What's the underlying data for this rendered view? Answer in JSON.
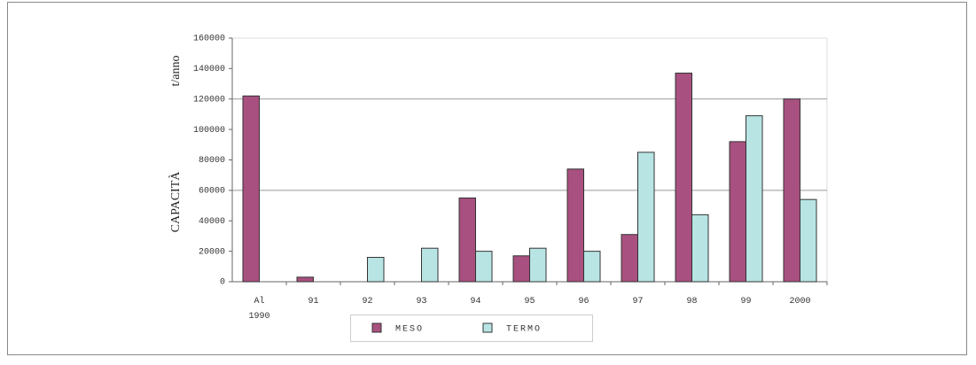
{
  "chart_data": {
    "type": "bar",
    "y_label_top": "t/anno",
    "y_label": "CAPACITÀ",
    "categories": [
      "Al\n1990",
      "91",
      "92",
      "93",
      "94",
      "95",
      "96",
      "97",
      "98",
      "99",
      "2000"
    ],
    "series": [
      {
        "name": "MESO",
        "color": "#a8507f",
        "values": [
          122000,
          3000,
          null,
          null,
          55000,
          17000,
          74000,
          31000,
          137000,
          92000,
          120000
        ]
      },
      {
        "name": "TERMO",
        "color": "#b8e4e4",
        "values": [
          null,
          null,
          16000,
          22000,
          20000,
          22000,
          20000,
          85000,
          44000,
          109000,
          54000
        ]
      }
    ],
    "ylim": [
      0,
      160000
    ],
    "yticks": [
      0,
      20000,
      40000,
      60000,
      80000,
      100000,
      120000,
      140000,
      160000
    ],
    "grid_lines": [
      60000,
      120000
    ]
  }
}
